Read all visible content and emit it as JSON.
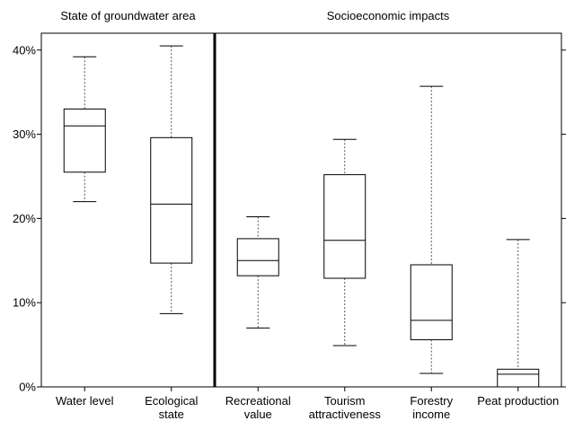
{
  "chart_data": {
    "type": "boxplot",
    "title": "",
    "xlabel": "",
    "ylabel": "",
    "y_unit": "%",
    "ylim": [
      0,
      42
    ],
    "y_ticks": [
      {
        "value": 0,
        "label": "0%"
      },
      {
        "value": 10,
        "label": "10%"
      },
      {
        "value": 20,
        "label": "20%"
      },
      {
        "value": 30,
        "label": "30%"
      },
      {
        "value": 40,
        "label": "40%"
      }
    ],
    "grid": false,
    "legend": "none",
    "groups": [
      {
        "name": "State of groundwater area",
        "categories": [
          0,
          1
        ]
      },
      {
        "name": "Socioeconomic impacts",
        "categories": [
          2,
          3,
          4,
          5
        ]
      }
    ],
    "categories": [
      {
        "label": [
          "Water level"
        ],
        "min": 22.0,
        "q1": 25.5,
        "median": 31.0,
        "q3": 33.0,
        "max": 39.2
      },
      {
        "label": [
          "Ecological",
          "state"
        ],
        "min": 8.7,
        "q1": 14.7,
        "median": 21.7,
        "q3": 29.6,
        "max": 40.5
      },
      {
        "label": [
          "Recreational",
          "value"
        ],
        "min": 7.0,
        "q1": 13.2,
        "median": 15.0,
        "q3": 17.6,
        "max": 20.2
      },
      {
        "label": [
          "Tourism",
          "attractiveness"
        ],
        "min": 4.9,
        "q1": 12.9,
        "median": 17.4,
        "q3": 25.2,
        "max": 29.4
      },
      {
        "label": [
          "Forestry",
          "income"
        ],
        "min": 1.6,
        "q1": 5.6,
        "median": 7.9,
        "q3": 14.5,
        "max": 35.7
      },
      {
        "label": [
          "Peat production"
        ],
        "min": 0.0,
        "q1": 0.0,
        "median": 1.5,
        "q3": 2.1,
        "max": 17.5
      }
    ]
  }
}
